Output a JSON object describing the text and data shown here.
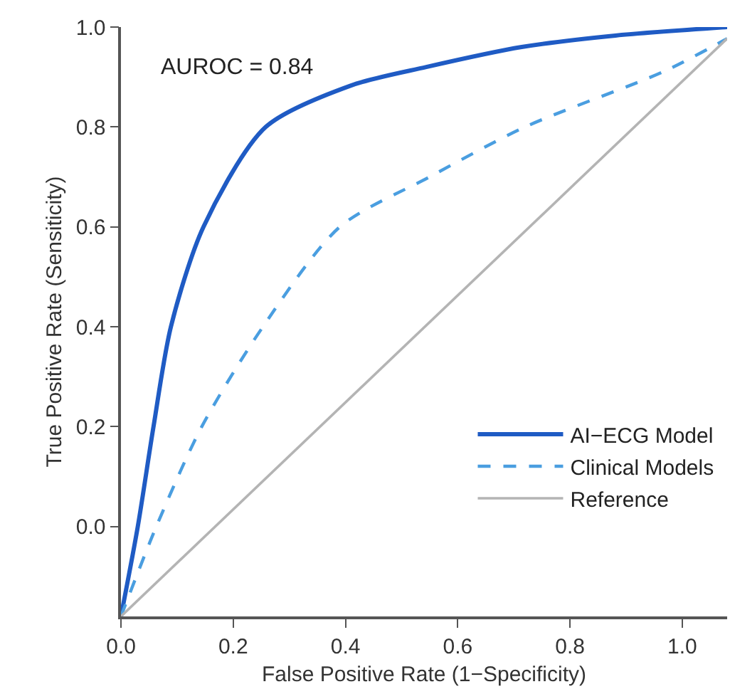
{
  "chart_data": {
    "type": "line",
    "xlabel": "False Positive Rate (1−Specificity)",
    "ylabel": "True Positive Rate (Sensiticity)",
    "annotations": [
      "AUROC = 0.84"
    ],
    "xlim": [
      0,
      1.08
    ],
    "ylim": [
      -0.18,
      1.0
    ],
    "xticks": [
      {
        "value": 0,
        "label": "0.0"
      },
      0.2,
      0.4,
      0.6,
      0.8,
      {
        "value": 1,
        "label": "1.0"
      }
    ],
    "yticks": [
      {
        "value": 0,
        "label": "0.0"
      },
      0.2,
      0.4,
      0.6,
      0.8,
      {
        "value": 1,
        "label": "1.0"
      }
    ],
    "legend": "bottom right",
    "marker": "none",
    "series": [
      {
        "name": "AI−ECG Model",
        "color": "#1f5bc4",
        "line_style": "solid",
        "x": [
          0,
          0.03,
          0.058,
          0.089,
          0.147,
          0.258,
          0.41,
          0.544,
          0.714,
          0.881,
          1.08
        ],
        "values": [
          -0.18,
          0.0,
          0.2,
          0.4,
          0.6,
          0.8,
          0.883,
          0.92,
          0.96,
          0.983,
          1.0
        ]
      },
      {
        "name": "Clinical Models",
        "color": "#4a9ee0",
        "line_style": "dashed",
        "x": [
          0,
          0.063,
          0.144,
          0.253,
          0.39,
          0.55,
          0.72,
          0.967,
          1.08
        ],
        "values": [
          -0.18,
          0.0,
          0.2,
          0.4,
          0.6,
          0.7,
          0.8,
          0.911,
          0.977
        ]
      },
      {
        "name": "Reference",
        "color": "#b4b4b4",
        "line_style": "solid",
        "x": [
          0,
          1.08
        ],
        "values": [
          -0.18,
          0.977
        ]
      }
    ]
  }
}
